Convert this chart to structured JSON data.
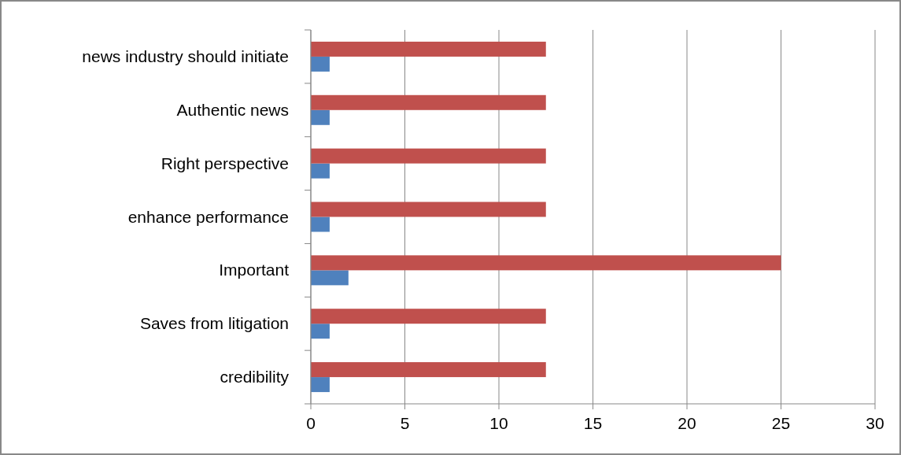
{
  "chart_data": {
    "type": "bar",
    "orientation": "horizontal",
    "categories": [
      "news industry should initiate",
      "Authentic news",
      "Right perspective",
      "enhance performance",
      "Important",
      "Saves from litigation",
      "credibility"
    ],
    "series": [
      {
        "color": "#4f81bd",
        "values": [
          1,
          1,
          1,
          1,
          2,
          1,
          1
        ]
      },
      {
        "color": "#c0504d",
        "values": [
          12.5,
          12.5,
          12.5,
          12.5,
          25,
          12.5,
          12.5
        ]
      }
    ],
    "xlim": [
      0,
      30
    ],
    "xticks": [
      0,
      5,
      10,
      15,
      20,
      25,
      30
    ],
    "grid": "x"
  }
}
